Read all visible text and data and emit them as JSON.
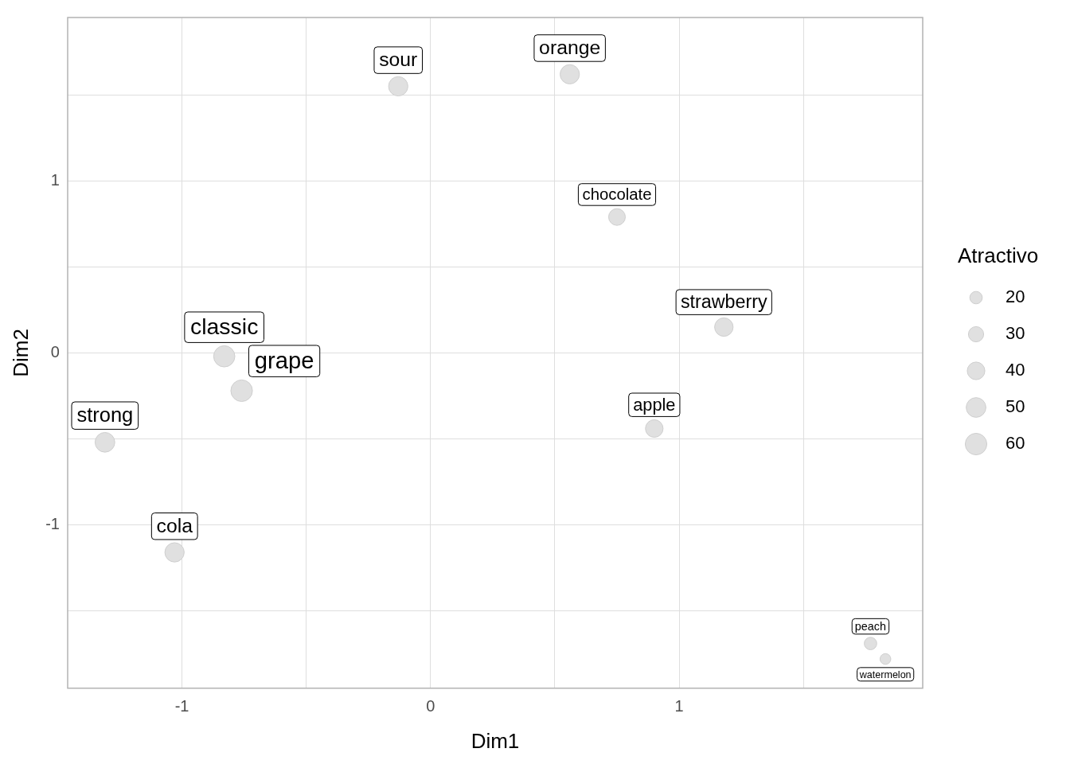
{
  "chart_data": {
    "type": "bubble",
    "xlabel": "Dim1",
    "ylabel": "Dim2",
    "legend_title": "Atractivo",
    "grid": true,
    "xlim": [
      -1.46,
      1.98
    ],
    "ylim": [
      -1.95,
      1.95
    ],
    "xticks": [
      -1,
      {
        "value": -0.5,
        "label": null
      },
      0,
      {
        "value": 0.5,
        "label": null
      },
      1,
      {
        "value": 1.5,
        "label": null
      }
    ],
    "yticks": [
      {
        "value": -1.5,
        "label": null
      },
      -1,
      {
        "value": -0.5,
        "label": null
      },
      0,
      {
        "value": 0.5,
        "label": null
      },
      1,
      {
        "value": 1.5,
        "label": null
      }
    ],
    "size_legend": [
      20,
      30,
      40,
      50,
      60
    ],
    "series": [
      {
        "color": "#e0e0e0",
        "x": [
          -0.13,
          0.56,
          0.75,
          1.18,
          0.9,
          -0.76,
          -0.83,
          -1.31,
          -1.03,
          1.77,
          1.83
        ],
        "values": [
          1.55,
          1.62,
          0.79,
          0.15,
          -0.44,
          -0.22,
          -0.02,
          -0.52,
          -1.16,
          -1.69,
          -1.78
        ],
        "sizes": [
          48,
          48,
          36,
          44,
          40,
          60,
          58,
          50,
          48,
          20,
          15
        ],
        "value_labels": [
          "sour",
          "orange",
          "chocolate",
          "strawberry",
          "apple",
          "grape",
          "classic",
          "strong",
          "cola",
          "peach",
          "watermelon"
        ]
      }
    ]
  }
}
